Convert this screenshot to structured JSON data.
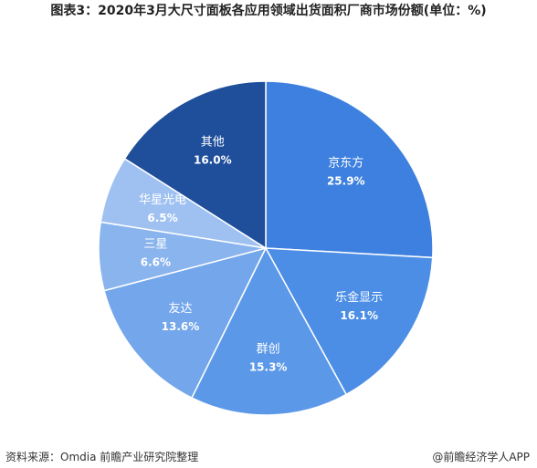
{
  "chart_data": {
    "type": "pie",
    "title": "图表3：2020年3月大尺寸面板各应用领域出货面积厂商市场份额(单位：%)",
    "categories": [
      "京东方",
      "乐金显示",
      "群创",
      "友达",
      "三星",
      "华星光电",
      "其他"
    ],
    "values": [
      25.9,
      16.1,
      15.3,
      13.6,
      6.6,
      6.5,
      16.0
    ],
    "value_labels": [
      "25.9%",
      "16.1%",
      "15.3%",
      "13.6%",
      "6.6%",
      "6.5%",
      "16.0%"
    ],
    "colors": [
      "#3d80df",
      "#4c8ee6",
      "#5b98e8",
      "#73a6eb",
      "#8ab4ee",
      "#9fc1f1",
      "#1f4e9b"
    ],
    "source": "资料来源：Omdia 前瞻产业研究院整理",
    "credit": "@前瞻经济学人APP"
  }
}
